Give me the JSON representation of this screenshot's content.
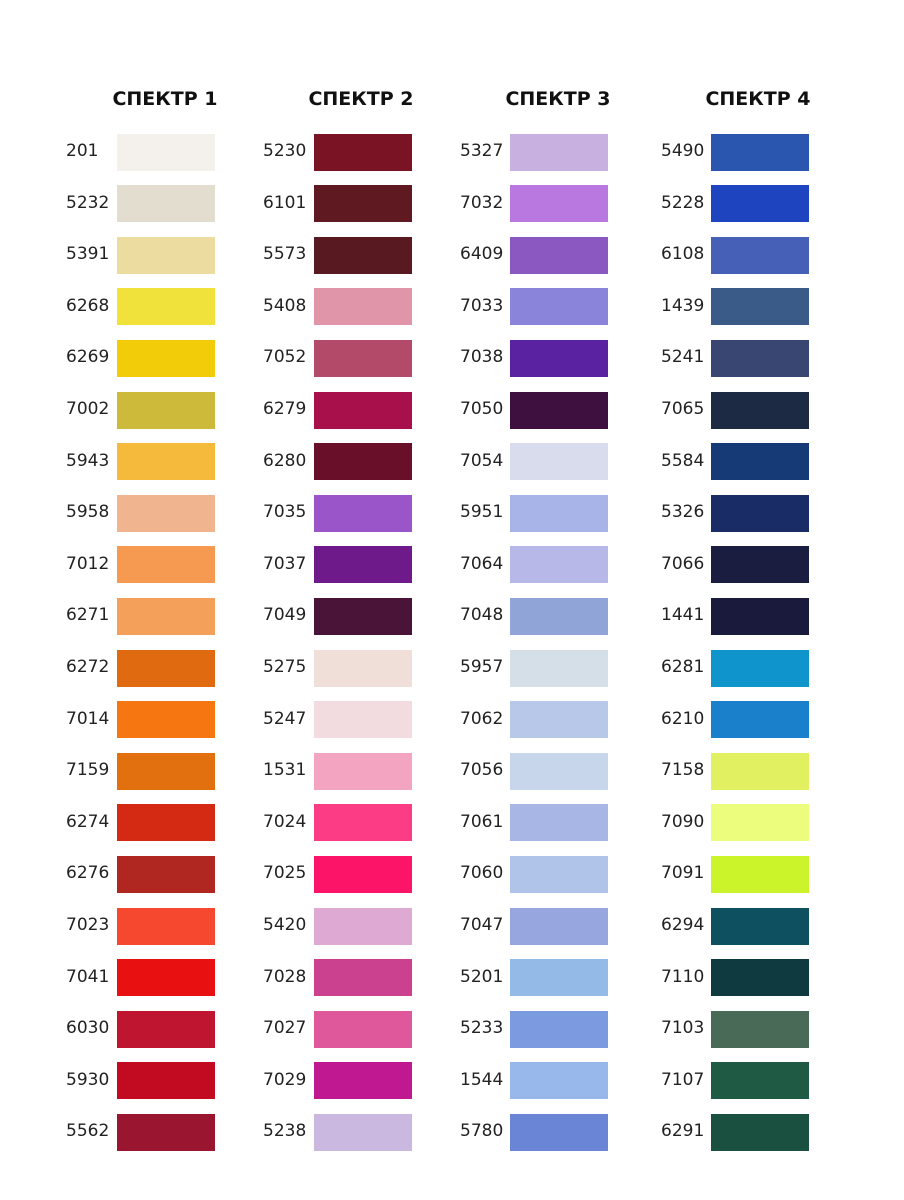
{
  "columns": [
    {
      "title": "СПЕКТР 1",
      "items": [
        {
          "code": "201",
          "color": "#f4f1ec"
        },
        {
          "code": "5232",
          "color": "#e3ddd0"
        },
        {
          "code": "5391",
          "color": "#ecdca0"
        },
        {
          "code": "6268",
          "color": "#f0e23a"
        },
        {
          "code": "6269",
          "color": "#f2cc08"
        },
        {
          "code": "7002",
          "color": "#cdb93a"
        },
        {
          "code": "5943",
          "color": "#f5b93c"
        },
        {
          "code": "5958",
          "color": "#f0b48e"
        },
        {
          "code": "7012",
          "color": "#f69a52"
        },
        {
          "code": "6271",
          "color": "#f5a05a"
        },
        {
          "code": "6272",
          "color": "#df6a10"
        },
        {
          "code": "7014",
          "color": "#f67712"
        },
        {
          "code": "7159",
          "color": "#e2700f"
        },
        {
          "code": "6274",
          "color": "#d42a14"
        },
        {
          "code": "6276",
          "color": "#b02620"
        },
        {
          "code": "7023",
          "color": "#f6472f"
        },
        {
          "code": "7041",
          "color": "#e81010"
        },
        {
          "code": "6030",
          "color": "#c01530"
        },
        {
          "code": "5930",
          "color": "#c20a20"
        },
        {
          "code": "5562",
          "color": "#9a1530"
        }
      ]
    },
    {
      "title": "СПЕКТР 2",
      "items": [
        {
          "code": "5230",
          "color": "#7a1424"
        },
        {
          "code": "6101",
          "color": "#5e1a20"
        },
        {
          "code": "5573",
          "color": "#581a20"
        },
        {
          "code": "5408",
          "color": "#e096a8"
        },
        {
          "code": "7052",
          "color": "#b44a6a"
        },
        {
          "code": "6279",
          "color": "#a8104c"
        },
        {
          "code": "6280",
          "color": "#6a0f2a"
        },
        {
          "code": "7035",
          "color": "#9a56c8"
        },
        {
          "code": "7037",
          "color": "#6e1a8a"
        },
        {
          "code": "7049",
          "color": "#4a1438"
        },
        {
          "code": "5275",
          "color": "#f0ded8"
        },
        {
          "code": "5247",
          "color": "#f2dce0"
        },
        {
          "code": "1531",
          "color": "#f2a4c0"
        },
        {
          "code": "7024",
          "color": "#fc3c84"
        },
        {
          "code": "7025",
          "color": "#fc1468"
        },
        {
          "code": "5420",
          "color": "#deaad4"
        },
        {
          "code": "7028",
          "color": "#cc4090"
        },
        {
          "code": "7027",
          "color": "#e0589c"
        },
        {
          "code": "7029",
          "color": "#c01890"
        },
        {
          "code": "5238",
          "color": "#cab8e0"
        }
      ]
    },
    {
      "title": "СПЕКТР 3",
      "items": [
        {
          "code": "5327",
          "color": "#c8b0e0"
        },
        {
          "code": "7032",
          "color": "#b878e0"
        },
        {
          "code": "6409",
          "color": "#8a58c0"
        },
        {
          "code": "7033",
          "color": "#8a84da"
        },
        {
          "code": "7038",
          "color": "#5a22a0"
        },
        {
          "code": "7050",
          "color": "#3e1040"
        },
        {
          "code": "7054",
          "color": "#d8dcec"
        },
        {
          "code": "5951",
          "color": "#a8b4e8"
        },
        {
          "code": "7064",
          "color": "#b8b8e8"
        },
        {
          "code": "7048",
          "color": "#90a4d8"
        },
        {
          "code": "5957",
          "color": "#d4dfe8"
        },
        {
          "code": "7062",
          "color": "#b8c8e8"
        },
        {
          "code": "7056",
          "color": "#c8d6ec"
        },
        {
          "code": "7061",
          "color": "#a8b6e6"
        },
        {
          "code": "7060",
          "color": "#b0c4ea"
        },
        {
          "code": "7047",
          "color": "#98a6e0"
        },
        {
          "code": "5201",
          "color": "#94bae8"
        },
        {
          "code": "5233",
          "color": "#7c9ae0"
        },
        {
          "code": "1544",
          "color": "#98b8ec"
        },
        {
          "code": "5780",
          "color": "#6a84d6"
        }
      ]
    },
    {
      "title": "СПЕКТР 4",
      "items": [
        {
          "code": "5490",
          "color": "#2a56b0"
        },
        {
          "code": "5228",
          "color": "#1e44c0"
        },
        {
          "code": "6108",
          "color": "#4660b8"
        },
        {
          "code": "1439",
          "color": "#3a5a88"
        },
        {
          "code": "5241",
          "color": "#3a4672"
        },
        {
          "code": "7065",
          "color": "#1c2a44"
        },
        {
          "code": "5584",
          "color": "#163a76"
        },
        {
          "code": "5326",
          "color": "#1a2c66"
        },
        {
          "code": "7066",
          "color": "#1a1c40"
        },
        {
          "code": "1441",
          "color": "#1a1a3c"
        },
        {
          "code": "6281",
          "color": "#1094cc"
        },
        {
          "code": "6210",
          "color": "#1a80cc"
        },
        {
          "code": "7158",
          "color": "#e0f060"
        },
        {
          "code": "7090",
          "color": "#ecfc7c"
        },
        {
          "code": "7091",
          "color": "#ccf42a"
        },
        {
          "code": "6294",
          "color": "#0e5060"
        },
        {
          "code": "7110",
          "color": "#0e3a40"
        },
        {
          "code": "7103",
          "color": "#4a6a58"
        },
        {
          "code": "7107",
          "color": "#1e5a44"
        },
        {
          "code": "6291",
          "color": "#1a5040"
        }
      ]
    }
  ]
}
